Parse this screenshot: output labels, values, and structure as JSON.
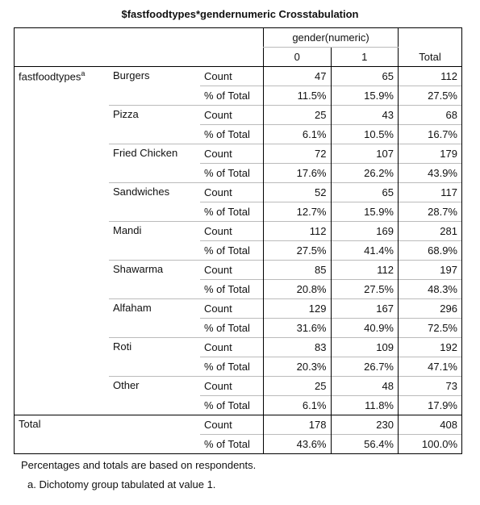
{
  "title": "$fastfoodtypes*gendernumeric Crosstabulation",
  "header": {
    "gender_label": "gender(numeric)",
    "col0": "0",
    "col1": "1",
    "total": "Total"
  },
  "row_var": {
    "label": "fastfoodtypes",
    "sup": "a"
  },
  "stats": {
    "count": "Count",
    "pct": "% of Total"
  },
  "rows": [
    {
      "name": "Burgers",
      "count": [
        "47",
        "65",
        "112"
      ],
      "pct": [
        "11.5%",
        "15.9%",
        "27.5%"
      ]
    },
    {
      "name": "Pizza",
      "count": [
        "25",
        "43",
        "68"
      ],
      "pct": [
        "6.1%",
        "10.5%",
        "16.7%"
      ]
    },
    {
      "name": "Fried Chicken",
      "count": [
        "72",
        "107",
        "179"
      ],
      "pct": [
        "17.6%",
        "26.2%",
        "43.9%"
      ]
    },
    {
      "name": "Sandwiches",
      "count": [
        "52",
        "65",
        "117"
      ],
      "pct": [
        "12.7%",
        "15.9%",
        "28.7%"
      ]
    },
    {
      "name": "Mandi",
      "count": [
        "112",
        "169",
        "281"
      ],
      "pct": [
        "27.5%",
        "41.4%",
        "68.9%"
      ]
    },
    {
      "name": "Shawarma",
      "count": [
        "85",
        "112",
        "197"
      ],
      "pct": [
        "20.8%",
        "27.5%",
        "48.3%"
      ]
    },
    {
      "name": "Alfaham",
      "count": [
        "129",
        "167",
        "296"
      ],
      "pct": [
        "31.6%",
        "40.9%",
        "72.5%"
      ]
    },
    {
      "name": "Roti",
      "count": [
        "83",
        "109",
        "192"
      ],
      "pct": [
        "20.3%",
        "26.7%",
        "47.1%"
      ]
    },
    {
      "name": "Other",
      "count": [
        "25",
        "48",
        "73"
      ],
      "pct": [
        "6.1%",
        "11.8%",
        "17.9%"
      ]
    }
  ],
  "total_row": {
    "label": "Total",
    "count": [
      "178",
      "230",
      "408"
    ],
    "pct": [
      "43.6%",
      "56.4%",
      "100.0%"
    ]
  },
  "footnotes": {
    "note1": "Percentages and totals are based on respondents.",
    "note2": "a. Dichotomy group tabulated at value 1."
  }
}
